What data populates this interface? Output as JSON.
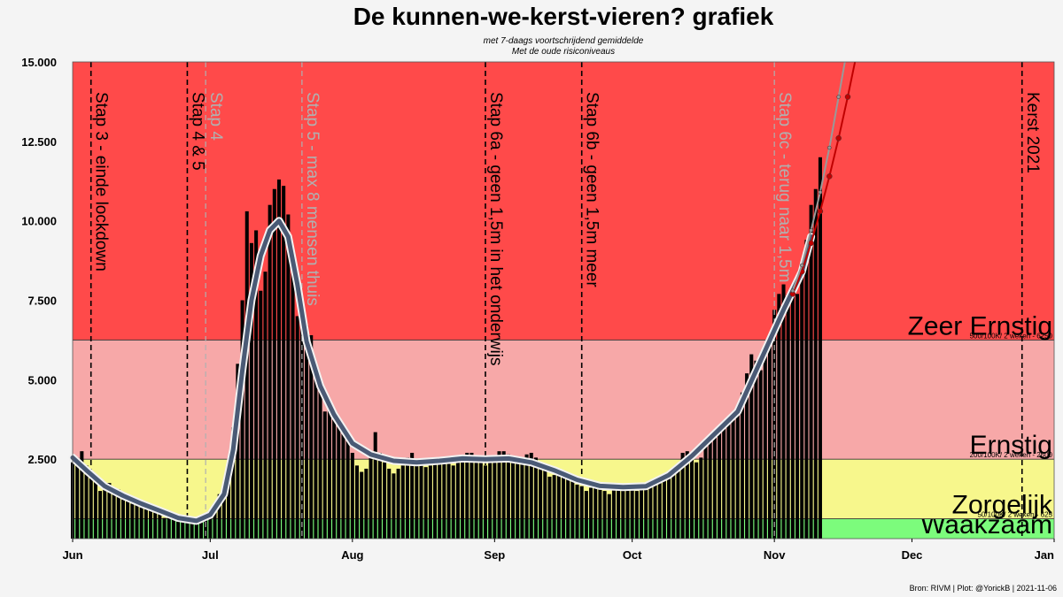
{
  "chart_data": {
    "type": "bar",
    "title": "De kunnen-we-kerst-vieren? grafiek",
    "subtitle_lines": [
      "met 7-daags voortschrijdend gemiddelde",
      "Met de oude risiconiveaus"
    ],
    "source": "Bron: RIVM | Plot: @YorickB  |  2021-11-06",
    "x_range": [
      "2021-06-01",
      "2022-01-01"
    ],
    "ylim": [
      0,
      15000
    ],
    "y_ticks": [
      {
        "value": 2500,
        "label": "2.500"
      },
      {
        "value": 5000,
        "label": "5.000"
      },
      {
        "value": 7500,
        "label": "7.500"
      },
      {
        "value": 10000,
        "label": "10.000"
      },
      {
        "value": 12500,
        "label": "12.500"
      },
      {
        "value": 15000,
        "label": "15.000"
      }
    ],
    "x_ticks": [
      {
        "date": "2021-06-01",
        "label": "Jun"
      },
      {
        "date": "2021-07-01",
        "label": "Jul"
      },
      {
        "date": "2021-08-01",
        "label": "Aug"
      },
      {
        "date": "2021-09-01",
        "label": "Sep"
      },
      {
        "date": "2021-10-01",
        "label": "Oct"
      },
      {
        "date": "2021-11-01",
        "label": "Nov"
      },
      {
        "date": "2021-12-01",
        "label": "Dec"
      },
      {
        "date": "2022-01-01",
        "label": "Jan"
      }
    ],
    "zones": [
      {
        "name": "Waakzaam",
        "from": 0,
        "to": 625,
        "color": "#7cfc7c",
        "threshold_label": ""
      },
      {
        "name": "Zorgelijk",
        "from": 625,
        "to": 2500,
        "color": "#f7f78c",
        "threshold_label": "50/100K/ 2 weken - 625"
      },
      {
        "name": "Ernstig",
        "from": 2500,
        "to": 6250,
        "color": "#f7a8a8",
        "threshold_label": "200/100K/ 2 weken - 2500"
      },
      {
        "name": "Zeer Ernstig",
        "from": 6250,
        "to": 15000,
        "color": "#ff4a4a",
        "threshold_label": "500/100K/ 2 weken - 6250"
      }
    ],
    "events": [
      {
        "date": "2021-06-05",
        "label": "Stap 3 - einde lockdown",
        "color": "#000000"
      },
      {
        "date": "2021-06-26",
        "label": "Stap 4 & 5",
        "color": "#000000"
      },
      {
        "date": "2021-06-30",
        "label": "Stap 4",
        "color": "#b0b0b0"
      },
      {
        "date": "2021-07-21",
        "label": "Stap 5 - max 8 mensen thuis",
        "color": "#b0b0b0"
      },
      {
        "date": "2021-08-30",
        "label": "Stap 6a - geen 1,5m in het onderwijs",
        "color": "#000000"
      },
      {
        "date": "2021-09-20",
        "label": "Stap 6b - geen 1,5m meer",
        "color": "#000000"
      },
      {
        "date": "2021-11-01",
        "label": "Stap 6c - terug naar 1,5m",
        "color": "#b0b0b0"
      },
      {
        "date": "2021-12-25",
        "label": "Kerst  2021",
        "color": "#000000"
      }
    ],
    "daily_cases": [
      {
        "date": "2021-06-01",
        "value": 2400
      },
      {
        "date": "2021-06-02",
        "value": 2550
      },
      {
        "date": "2021-06-03",
        "value": 2750
      },
      {
        "date": "2021-06-04",
        "value": 2300
      },
      {
        "date": "2021-06-05",
        "value": 2100
      },
      {
        "date": "2021-06-06",
        "value": 1850
      },
      {
        "date": "2021-06-07",
        "value": 1500
      },
      {
        "date": "2021-06-08",
        "value": 1700
      },
      {
        "date": "2021-06-09",
        "value": 1750
      },
      {
        "date": "2021-06-10",
        "value": 1600
      },
      {
        "date": "2021-06-11",
        "value": 1550
      },
      {
        "date": "2021-06-12",
        "value": 1400
      },
      {
        "date": "2021-06-13",
        "value": 1250
      },
      {
        "date": "2021-06-14",
        "value": 1100
      },
      {
        "date": "2021-06-15",
        "value": 1200
      },
      {
        "date": "2021-06-16",
        "value": 1150
      },
      {
        "date": "2021-06-17",
        "value": 1050
      },
      {
        "date": "2021-06-18",
        "value": 1000
      },
      {
        "date": "2021-06-19",
        "value": 900
      },
      {
        "date": "2021-06-20",
        "value": 780
      },
      {
        "date": "2021-06-21",
        "value": 650
      },
      {
        "date": "2021-06-22",
        "value": 700
      },
      {
        "date": "2021-06-23",
        "value": 720
      },
      {
        "date": "2021-06-24",
        "value": 650
      },
      {
        "date": "2021-06-25",
        "value": 600
      },
      {
        "date": "2021-06-26",
        "value": 560
      },
      {
        "date": "2021-06-27",
        "value": 500
      },
      {
        "date": "2021-06-28",
        "value": 480
      },
      {
        "date": "2021-06-29",
        "value": 600
      },
      {
        "date": "2021-06-30",
        "value": 720
      },
      {
        "date": "2021-07-01",
        "value": 800
      },
      {
        "date": "2021-07-02",
        "value": 1050
      },
      {
        "date": "2021-07-03",
        "value": 1400
      },
      {
        "date": "2021-07-04",
        "value": 1550
      },
      {
        "date": "2021-07-05",
        "value": 2100
      },
      {
        "date": "2021-07-06",
        "value": 3500
      },
      {
        "date": "2021-07-07",
        "value": 5500
      },
      {
        "date": "2021-07-08",
        "value": 7500
      },
      {
        "date": "2021-07-09",
        "value": 10300
      },
      {
        "date": "2021-07-10",
        "value": 9300
      },
      {
        "date": "2021-07-11",
        "value": 9700
      },
      {
        "date": "2021-07-12",
        "value": 7800
      },
      {
        "date": "2021-07-13",
        "value": 8400
      },
      {
        "date": "2021-07-14",
        "value": 10500
      },
      {
        "date": "2021-07-15",
        "value": 11000
      },
      {
        "date": "2021-07-16",
        "value": 11300
      },
      {
        "date": "2021-07-17",
        "value": 11100
      },
      {
        "date": "2021-07-18",
        "value": 10200
      },
      {
        "date": "2021-07-19",
        "value": 8700
      },
      {
        "date": "2021-07-20",
        "value": 7000
      },
      {
        "date": "2021-07-21",
        "value": 6800
      },
      {
        "date": "2021-07-22",
        "value": 6700
      },
      {
        "date": "2021-07-23",
        "value": 6400
      },
      {
        "date": "2021-07-24",
        "value": 5500
      },
      {
        "date": "2021-07-25",
        "value": 4800
      },
      {
        "date": "2021-07-26",
        "value": 4000
      },
      {
        "date": "2021-07-27",
        "value": 4300
      },
      {
        "date": "2021-07-28",
        "value": 4000
      },
      {
        "date": "2021-07-29",
        "value": 3800
      },
      {
        "date": "2021-07-30",
        "value": 3400
      },
      {
        "date": "2021-07-31",
        "value": 3100
      },
      {
        "date": "2021-08-01",
        "value": 2700
      },
      {
        "date": "2021-08-02",
        "value": 2300
      },
      {
        "date": "2021-08-03",
        "value": 2100
      },
      {
        "date": "2021-08-04",
        "value": 2200
      },
      {
        "date": "2021-08-05",
        "value": 2600
      },
      {
        "date": "2021-08-06",
        "value": 3350
      },
      {
        "date": "2021-08-07",
        "value": 2700
      },
      {
        "date": "2021-08-08",
        "value": 2400
      },
      {
        "date": "2021-08-09",
        "value": 2200
      },
      {
        "date": "2021-08-10",
        "value": 2050
      },
      {
        "date": "2021-08-11",
        "value": 2200
      },
      {
        "date": "2021-08-12",
        "value": 2300
      },
      {
        "date": "2021-08-13",
        "value": 2550
      },
      {
        "date": "2021-08-14",
        "value": 2700
      },
      {
        "date": "2021-08-15",
        "value": 2500
      },
      {
        "date": "2021-08-16",
        "value": 2300
      },
      {
        "date": "2021-08-17",
        "value": 2250
      },
      {
        "date": "2021-08-18",
        "value": 2300
      },
      {
        "date": "2021-08-19",
        "value": 2450
      },
      {
        "date": "2021-08-20",
        "value": 2550
      },
      {
        "date": "2021-08-21",
        "value": 2450
      },
      {
        "date": "2021-08-22",
        "value": 2350
      },
      {
        "date": "2021-08-23",
        "value": 2300
      },
      {
        "date": "2021-08-24",
        "value": 2400
      },
      {
        "date": "2021-08-25",
        "value": 2600
      },
      {
        "date": "2021-08-26",
        "value": 2700
      },
      {
        "date": "2021-08-27",
        "value": 2700
      },
      {
        "date": "2021-08-28",
        "value": 2550
      },
      {
        "date": "2021-08-29",
        "value": 2400
      },
      {
        "date": "2021-08-30",
        "value": 2300
      },
      {
        "date": "2021-08-31",
        "value": 2400
      },
      {
        "date": "2021-09-01",
        "value": 2600
      },
      {
        "date": "2021-09-02",
        "value": 2750
      },
      {
        "date": "2021-09-03",
        "value": 2750
      },
      {
        "date": "2021-09-04",
        "value": 2650
      },
      {
        "date": "2021-09-05",
        "value": 2500
      },
      {
        "date": "2021-09-06",
        "value": 2400
      },
      {
        "date": "2021-09-07",
        "value": 2500
      },
      {
        "date": "2021-09-08",
        "value": 2650
      },
      {
        "date": "2021-09-09",
        "value": 2700
      },
      {
        "date": "2021-09-10",
        "value": 2550
      },
      {
        "date": "2021-09-11",
        "value": 2400
      },
      {
        "date": "2021-09-12",
        "value": 2200
      },
      {
        "date": "2021-09-13",
        "value": 1950
      },
      {
        "date": "2021-09-14",
        "value": 2000
      },
      {
        "date": "2021-09-15",
        "value": 2200
      },
      {
        "date": "2021-09-16",
        "value": 2100
      },
      {
        "date": "2021-09-17",
        "value": 1900
      },
      {
        "date": "2021-09-18",
        "value": 1800
      },
      {
        "date": "2021-09-19",
        "value": 1700
      },
      {
        "date": "2021-09-20",
        "value": 1650
      },
      {
        "date": "2021-09-21",
        "value": 1500
      },
      {
        "date": "2021-09-22",
        "value": 1600
      },
      {
        "date": "2021-09-23",
        "value": 1700
      },
      {
        "date": "2021-09-24",
        "value": 1650
      },
      {
        "date": "2021-09-25",
        "value": 1500
      },
      {
        "date": "2021-09-26",
        "value": 1400
      },
      {
        "date": "2021-09-27",
        "value": 1550
      },
      {
        "date": "2021-09-28",
        "value": 1600
      },
      {
        "date": "2021-09-29",
        "value": 1700
      },
      {
        "date": "2021-09-30",
        "value": 1650
      },
      {
        "date": "2021-10-01",
        "value": 1600
      },
      {
        "date": "2021-10-02",
        "value": 1500
      },
      {
        "date": "2021-10-03",
        "value": 1550
      },
      {
        "date": "2021-10-04",
        "value": 1600
      },
      {
        "date": "2021-10-05",
        "value": 1650
      },
      {
        "date": "2021-10-06",
        "value": 1700
      },
      {
        "date": "2021-10-07",
        "value": 1800
      },
      {
        "date": "2021-10-08",
        "value": 1850
      },
      {
        "date": "2021-10-09",
        "value": 1950
      },
      {
        "date": "2021-10-10",
        "value": 2000
      },
      {
        "date": "2021-10-11",
        "value": 2300
      },
      {
        "date": "2021-10-12",
        "value": 2700
      },
      {
        "date": "2021-10-13",
        "value": 2750
      },
      {
        "date": "2021-10-14",
        "value": 2600
      },
      {
        "date": "2021-10-15",
        "value": 2400
      },
      {
        "date": "2021-10-16",
        "value": 2550
      },
      {
        "date": "2021-10-17",
        "value": 2900
      },
      {
        "date": "2021-10-18",
        "value": 3200
      },
      {
        "date": "2021-10-19",
        "value": 3400
      },
      {
        "date": "2021-10-20",
        "value": 3500
      },
      {
        "date": "2021-10-21",
        "value": 3700
      },
      {
        "date": "2021-10-22",
        "value": 3800
      },
      {
        "date": "2021-10-23",
        "value": 3900
      },
      {
        "date": "2021-10-24",
        "value": 4000
      },
      {
        "date": "2021-10-25",
        "value": 4600
      },
      {
        "date": "2021-10-26",
        "value": 5200
      },
      {
        "date": "2021-10-27",
        "value": 5800
      },
      {
        "date": "2021-10-28",
        "value": 5600
      },
      {
        "date": "2021-10-29",
        "value": 5300
      },
      {
        "date": "2021-10-30",
        "value": 5800
      },
      {
        "date": "2021-10-31",
        "value": 6400
      },
      {
        "date": "2021-11-01",
        "value": 7200
      },
      {
        "date": "2021-11-02",
        "value": 7700
      },
      {
        "date": "2021-11-03",
        "value": 8000
      },
      {
        "date": "2021-11-04",
        "value": 7700
      },
      {
        "date": "2021-11-05",
        "value": 7700
      },
      {
        "date": "2021-11-06",
        "value": 7700
      },
      {
        "date": "2021-11-07",
        "value": 8300
      },
      {
        "date": "2021-11-08",
        "value": 9400
      },
      {
        "date": "2021-11-09",
        "value": 10500
      },
      {
        "date": "2021-11-10",
        "value": 11000
      },
      {
        "date": "2021-11-11",
        "value": 12000
      }
    ],
    "moving_average": [
      {
        "date": "2021-06-01",
        "value": 2550
      },
      {
        "date": "2021-06-04",
        "value": 2150
      },
      {
        "date": "2021-06-08",
        "value": 1650
      },
      {
        "date": "2021-06-12",
        "value": 1350
      },
      {
        "date": "2021-06-16",
        "value": 1100
      },
      {
        "date": "2021-06-20",
        "value": 880
      },
      {
        "date": "2021-06-24",
        "value": 650
      },
      {
        "date": "2021-06-28",
        "value": 560
      },
      {
        "date": "2021-07-01",
        "value": 750
      },
      {
        "date": "2021-07-04",
        "value": 1400
      },
      {
        "date": "2021-07-06",
        "value": 2800
      },
      {
        "date": "2021-07-08",
        "value": 5300
      },
      {
        "date": "2021-07-10",
        "value": 7500
      },
      {
        "date": "2021-07-12",
        "value": 8900
      },
      {
        "date": "2021-07-14",
        "value": 9700
      },
      {
        "date": "2021-07-16",
        "value": 10000
      },
      {
        "date": "2021-07-18",
        "value": 9500
      },
      {
        "date": "2021-07-20",
        "value": 8000
      },
      {
        "date": "2021-07-22",
        "value": 6200
      },
      {
        "date": "2021-07-25",
        "value": 4800
      },
      {
        "date": "2021-07-28",
        "value": 3900
      },
      {
        "date": "2021-08-01",
        "value": 3000
      },
      {
        "date": "2021-08-05",
        "value": 2650
      },
      {
        "date": "2021-08-10",
        "value": 2450
      },
      {
        "date": "2021-08-15",
        "value": 2400
      },
      {
        "date": "2021-08-20",
        "value": 2450
      },
      {
        "date": "2021-08-25",
        "value": 2520
      },
      {
        "date": "2021-08-30",
        "value": 2500
      },
      {
        "date": "2021-09-04",
        "value": 2520
      },
      {
        "date": "2021-09-09",
        "value": 2400
      },
      {
        "date": "2021-09-14",
        "value": 2150
      },
      {
        "date": "2021-09-19",
        "value": 1850
      },
      {
        "date": "2021-09-24",
        "value": 1660
      },
      {
        "date": "2021-09-29",
        "value": 1620
      },
      {
        "date": "2021-10-04",
        "value": 1650
      },
      {
        "date": "2021-10-09",
        "value": 2000
      },
      {
        "date": "2021-10-14",
        "value": 2600
      },
      {
        "date": "2021-10-19",
        "value": 3300
      },
      {
        "date": "2021-10-24",
        "value": 4000
      },
      {
        "date": "2021-10-29",
        "value": 5600
      },
      {
        "date": "2021-11-03",
        "value": 7200
      },
      {
        "date": "2021-11-07",
        "value": 8400
      },
      {
        "date": "2021-11-09",
        "value": 9500
      }
    ],
    "projection_red": [
      {
        "date": "2021-11-05",
        "value": 7700
      },
      {
        "date": "2021-11-07",
        "value": 8400
      },
      {
        "date": "2021-11-09",
        "value": 9300
      },
      {
        "date": "2021-11-11",
        "value": 10300
      },
      {
        "date": "2021-11-13",
        "value": 11400
      },
      {
        "date": "2021-11-15",
        "value": 12600
      },
      {
        "date": "2021-11-17",
        "value": 13900
      },
      {
        "date": "2021-11-19",
        "value": 15300
      }
    ],
    "projection_grey": [
      {
        "date": "2021-11-05",
        "value": 7800
      },
      {
        "date": "2021-11-07",
        "value": 8600
      },
      {
        "date": "2021-11-09",
        "value": 9700
      },
      {
        "date": "2021-11-11",
        "value": 10900
      },
      {
        "date": "2021-11-13",
        "value": 12300
      },
      {
        "date": "2021-11-15",
        "value": 13900
      },
      {
        "date": "2021-11-17",
        "value": 15500
      }
    ],
    "colors": {
      "bar": "#000000",
      "moving_average_outer": "#f2f2f2",
      "moving_average_inner": "#4a5a75",
      "projection_red": "#c00000",
      "projection_grey": "#999999",
      "event_line": "#000000",
      "zone_border": "#333333"
    }
  }
}
